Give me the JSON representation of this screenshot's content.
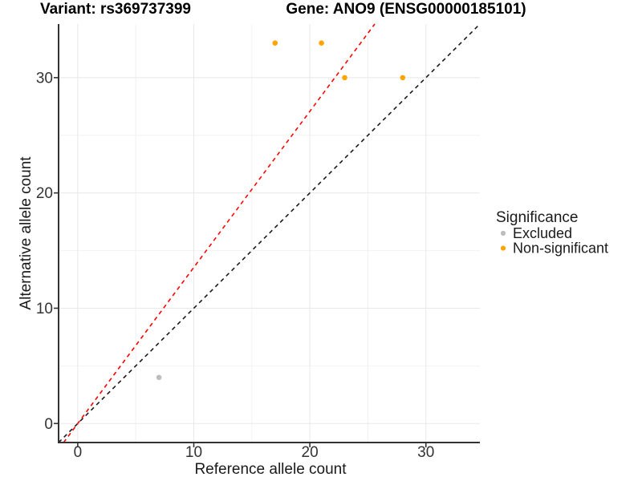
{
  "titles": {
    "left": "Variant: rs369737399",
    "right": "Gene: ANO9 (ENSG00000185101)"
  },
  "chart_data": {
    "type": "scatter",
    "xlabel": "Reference allele count",
    "ylabel": "Alternative allele count",
    "xlim": [
      -1.65,
      34.65
    ],
    "ylim": [
      -1.65,
      34.65
    ],
    "x_ticks": [
      0,
      10,
      20,
      30
    ],
    "y_ticks": [
      0,
      10,
      20,
      30
    ],
    "x_tick_labels": [
      "0",
      "10",
      "20",
      "30"
    ],
    "y_tick_labels": [
      "0",
      "10",
      "20",
      "30"
    ],
    "grid_major": [
      0,
      10,
      20,
      30
    ],
    "grid_minor": [
      5,
      15,
      25
    ],
    "series": [
      {
        "name": "Excluded",
        "color": "#BDBDBD",
        "points": [
          [
            7,
            4
          ]
        ]
      },
      {
        "name": "Non-significant",
        "color": "#FFA500",
        "points": [
          [
            17,
            33
          ],
          [
            21,
            33
          ],
          [
            23,
            30
          ],
          [
            28,
            30
          ]
        ]
      }
    ],
    "lines": [
      {
        "name": "identity-line",
        "slope": 1.0,
        "intercept": 0,
        "color": "#1A1A1A",
        "dash": "5,4.5"
      },
      {
        "name": "expected-ratio-line",
        "slope": 1.354,
        "intercept": 0,
        "color": "#FF0000",
        "dash": "5,4.5"
      }
    ],
    "legend": {
      "title": "Significance",
      "items": [
        {
          "label": "Excluded",
          "color": "#BDBDBD"
        },
        {
          "label": "Non-significant",
          "color": "#FFA500"
        }
      ]
    }
  },
  "style_colors": {
    "grid_major": "#E8E8E8",
    "grid_minor": "#F2F2F2",
    "axis_line": "#333333",
    "tick_mark": "#333333"
  }
}
